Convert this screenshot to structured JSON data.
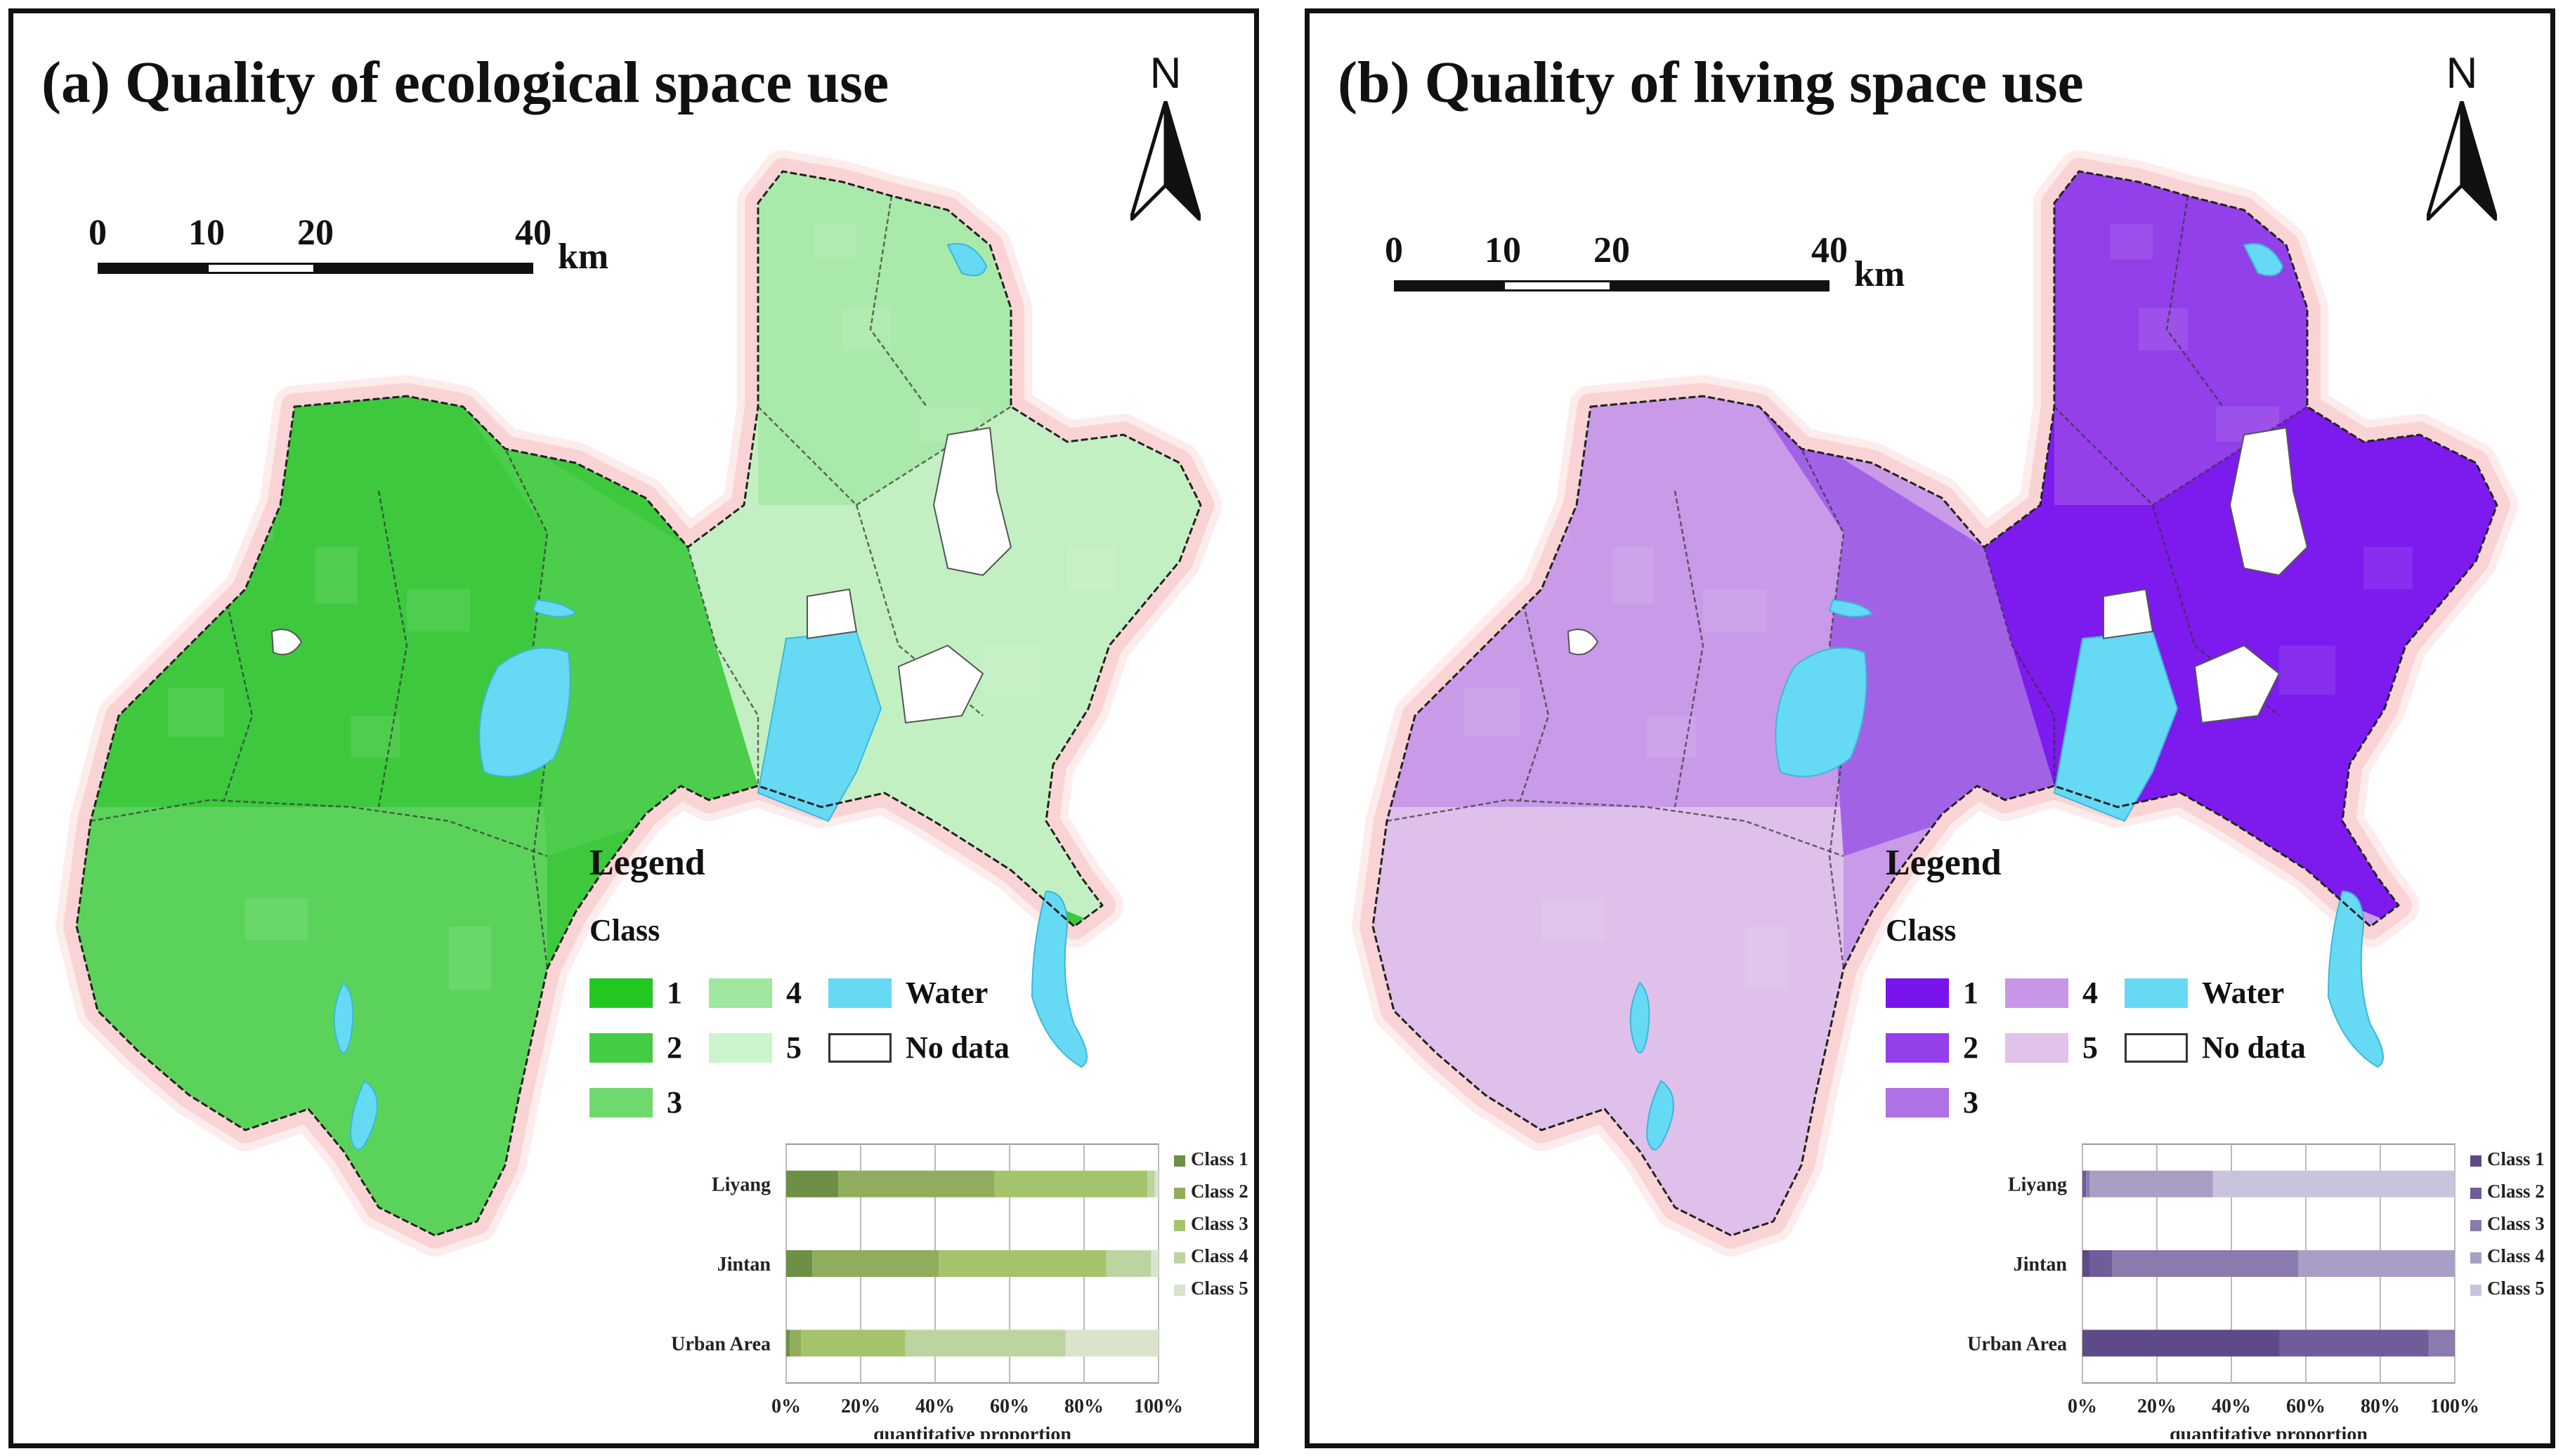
{
  "panels": [
    {
      "id": "a",
      "title": "(a) Quality of ecological space use",
      "north_label": "N",
      "scale": {
        "ticks": [
          "0",
          "10",
          "20",
          "40"
        ],
        "unit": "km"
      },
      "legend": {
        "title": "Legend",
        "subtitle": "Class",
        "items": [
          {
            "label": "1",
            "color": "#22c722"
          },
          {
            "label": "2",
            "color": "#44cd44"
          },
          {
            "label": "3",
            "color": "#6fd86f"
          },
          {
            "label": "4",
            "color": "#9fe69f"
          },
          {
            "label": "5",
            "color": "#ccf4cc"
          },
          {
            "label": "Water",
            "color": "#66d9f5"
          },
          {
            "label": "No data",
            "color": "#ffffff"
          }
        ]
      },
      "region_colors": {
        "west": "#3ec83e",
        "west_south": "#5bd35b",
        "center": "#4ccd4c",
        "east": "#c2f0c2",
        "east_north": "#a9e9a9"
      },
      "chart_data": {
        "type": "bar",
        "orientation": "horizontal",
        "stacked": true,
        "categories": [
          "Liyang",
          "Jintan",
          "Urban Area"
        ],
        "series": [
          {
            "name": "Class 1",
            "color": "#6d8f46",
            "values": [
              14,
              7,
              1
            ]
          },
          {
            "name": "Class 2",
            "color": "#8fad5c",
            "values": [
              42,
              34,
              3
            ]
          },
          {
            "name": "Class 3",
            "color": "#a4c46c",
            "values": [
              41,
              45,
              28
            ]
          },
          {
            "name": "Class 4",
            "color": "#bdd3a0",
            "values": [
              2,
              12,
              43
            ]
          },
          {
            "name": "Class 5",
            "color": "#d9e4cb",
            "values": [
              1,
              2,
              25
            ]
          }
        ],
        "xlabel": "quantitative proportion",
        "xticks": [
          "0%",
          "20%",
          "40%",
          "60%",
          "80%",
          "100%"
        ],
        "xlim": [
          0,
          100
        ],
        "legend_position": "right"
      }
    },
    {
      "id": "b",
      "title": "(b) Quality of living space use",
      "north_label": "N",
      "scale": {
        "ticks": [
          "0",
          "10",
          "20",
          "40"
        ],
        "unit": "km"
      },
      "legend": {
        "title": "Legend",
        "subtitle": "Class",
        "items": [
          {
            "label": "1",
            "color": "#7a14ee"
          },
          {
            "label": "2",
            "color": "#9340ea"
          },
          {
            "label": "3",
            "color": "#b070e6"
          },
          {
            "label": "4",
            "color": "#c896e8"
          },
          {
            "label": "5",
            "color": "#e0c2ea"
          },
          {
            "label": "Water",
            "color": "#66d9f5"
          },
          {
            "label": "No data",
            "color": "#ffffff"
          }
        ]
      },
      "region_colors": {
        "west": "#c89ae8",
        "west_south": "#dfc0ea",
        "center": "#a262e6",
        "east": "#7d1aee",
        "east_north": "#9340ea"
      },
      "chart_data": {
        "type": "bar",
        "orientation": "horizontal",
        "stacked": true,
        "categories": [
          "Liyang",
          "Jintan",
          "Urban Area"
        ],
        "series": [
          {
            "name": "Class 1",
            "color": "#5d4a86",
            "values": [
              0,
              2,
              53
            ]
          },
          {
            "name": "Class 2",
            "color": "#6f5c98",
            "values": [
              1,
              6,
              40
            ]
          },
          {
            "name": "Class 3",
            "color": "#8a7aae",
            "values": [
              1,
              50,
              7
            ]
          },
          {
            "name": "Class 4",
            "color": "#a99fc6",
            "values": [
              33,
              42,
              0
            ]
          },
          {
            "name": "Class 5",
            "color": "#c9c3dc",
            "values": [
              65,
              0,
              0
            ]
          }
        ],
        "xlabel": "quantitative proportion",
        "xticks": [
          "0%",
          "20%",
          "40%",
          "60%",
          "80%",
          "100%"
        ],
        "xlim": [
          0,
          100
        ],
        "legend_position": "right"
      }
    }
  ]
}
